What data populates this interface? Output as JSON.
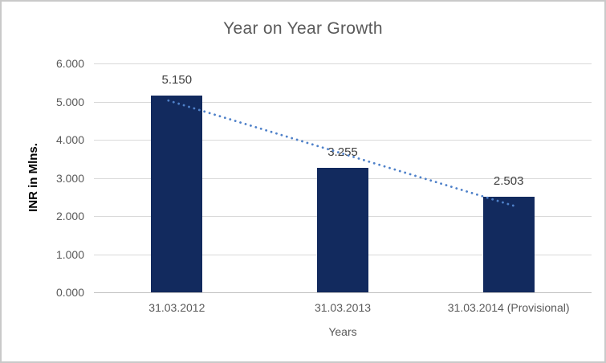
{
  "window": {
    "background": "#ffffff",
    "border_color": "#c9c9c9"
  },
  "chart_data": {
    "type": "bar",
    "title": "Year on Year Growth",
    "xlabel": "Years",
    "ylabel": "INR in Mlns.",
    "categories": [
      "31.03.2012",
      "31.03.2013",
      "31.03.2014 (Provisional)"
    ],
    "values": [
      5.15,
      3.255,
      2.503
    ],
    "value_labels": [
      "5.150",
      "3.255",
      "2.503"
    ],
    "ylim": [
      0,
      6
    ],
    "ytick_labels": [
      "0.000",
      "1.000",
      "2.000",
      "3.000",
      "4.000",
      "5.000",
      "6.000"
    ],
    "grid": "horizontal-only",
    "legend": "none",
    "bar_color": "#122a5e",
    "trendline": {
      "type": "linear",
      "style": "dotted",
      "color": "#4f81c9",
      "fitted_values": [
        4.96,
        3.64,
        2.31
      ]
    },
    "title_color": "#595959",
    "tick_color": "#595959",
    "data_label_color": "#404040",
    "gridline_color": "#d9d9d9",
    "axis_line_color": "#bfbfbf"
  }
}
